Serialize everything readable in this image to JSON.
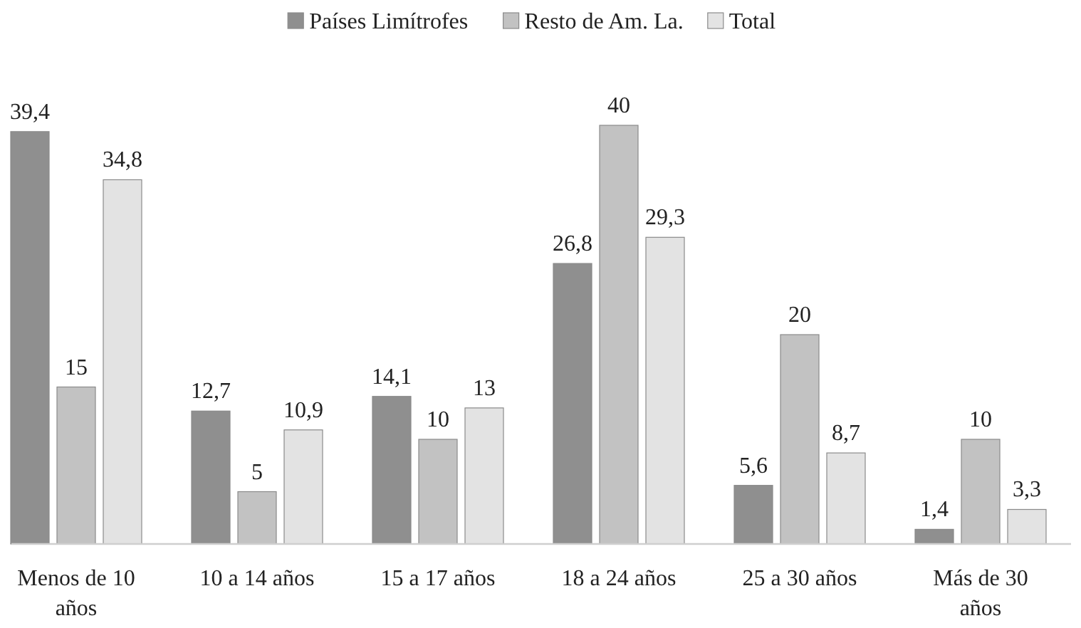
{
  "chart_data": {
    "type": "bar",
    "categories": [
      "Menos de 10 años",
      "10 a 14 años",
      "15 a 17 años",
      "18 a 24 años",
      "25 a 30 años",
      "Más de 30 años"
    ],
    "series": [
      {
        "name": "Países Limítrofes",
        "color": "#8f8f8f",
        "values": [
          39.4,
          12.7,
          14.1,
          26.8,
          5.6,
          1.4
        ],
        "value_labels": [
          "39,4",
          "12,7",
          "14,1",
          "26,8",
          "5,6",
          "1,4"
        ]
      },
      {
        "name": "Resto de Am. La.",
        "color": "#c2c2c2",
        "values": [
          15,
          5,
          10,
          40,
          20,
          10
        ],
        "value_labels": [
          "15",
          "5",
          "10",
          "40",
          "20",
          "10"
        ]
      },
      {
        "name": "Total",
        "color": "#e3e3e3",
        "values": [
          34.8,
          10.9,
          13,
          29.3,
          8.7,
          3.3
        ],
        "value_labels": [
          "34,8",
          "10,9",
          "13",
          "29,3",
          "8,7",
          "3,3"
        ]
      }
    ],
    "legend": "top",
    "grid": false
  }
}
